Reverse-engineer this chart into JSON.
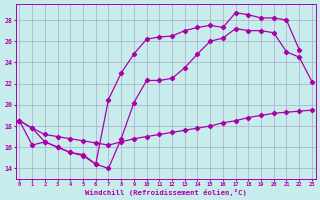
{
  "xlabel": "Windchill (Refroidissement éolien,°C)",
  "bg_color": "#c8ecec",
  "line_color": "#aa00aa",
  "grid_color": "#aaaacc",
  "yticks": [
    14,
    16,
    18,
    20,
    22,
    24,
    26,
    28
  ],
  "xticks": [
    0,
    1,
    2,
    3,
    4,
    5,
    6,
    7,
    8,
    9,
    10,
    11,
    12,
    13,
    14,
    15,
    16,
    17,
    18,
    19,
    20,
    21,
    22,
    23
  ],
  "line1_x": [
    0,
    1,
    2,
    3,
    4,
    5,
    6,
    7,
    8,
    9,
    10,
    11,
    12,
    13,
    14,
    15,
    16,
    17,
    18,
    19,
    20,
    21,
    22,
    23
  ],
  "line1_y": [
    18.5,
    17.8,
    17.2,
    17.0,
    16.8,
    16.6,
    16.4,
    16.2,
    16.5,
    16.8,
    17.0,
    17.2,
    17.4,
    17.6,
    17.8,
    18.0,
    18.3,
    18.5,
    18.8,
    19.0,
    19.2,
    19.3,
    19.4,
    19.5
  ],
  "line2_x": [
    0,
    1,
    2,
    3,
    4,
    5,
    6,
    7,
    8,
    9,
    10,
    11,
    12,
    13,
    14,
    15,
    16,
    17,
    18,
    19,
    20,
    21,
    22,
    23
  ],
  "line2_y": [
    18.5,
    16.2,
    16.5,
    16.0,
    15.5,
    15.2,
    14.4,
    14.0,
    16.8,
    20.2,
    22.3,
    22.3,
    22.5,
    23.5,
    24.8,
    26.0,
    26.3,
    27.2,
    27.0,
    27.0,
    26.8,
    25.0,
    24.5,
    22.2
  ],
  "line3_x": [
    0,
    1,
    2,
    3,
    4,
    5,
    6,
    7,
    8,
    9,
    10,
    11,
    12,
    13,
    14,
    15,
    16,
    17,
    18,
    19,
    20,
    21,
    22
  ],
  "line3_y": [
    18.5,
    17.8,
    16.5,
    16.0,
    15.5,
    15.3,
    14.4,
    20.5,
    23.0,
    24.8,
    26.2,
    26.4,
    26.5,
    27.0,
    27.3,
    27.5,
    27.3,
    28.7,
    28.5,
    28.2,
    28.2,
    28.0,
    25.2
  ]
}
